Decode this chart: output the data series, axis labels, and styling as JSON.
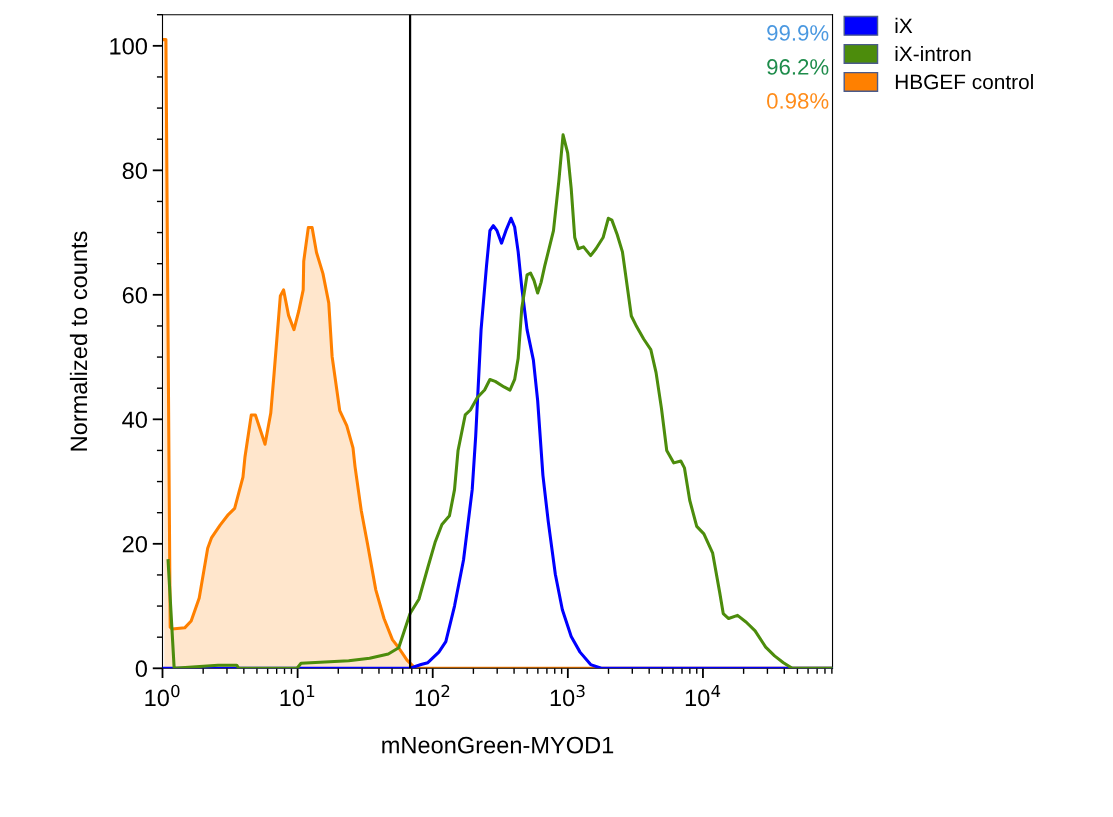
{
  "chart_data": {
    "type": "line",
    "xlabel": "mNeonGreen-MYOD1",
    "ylabel": "Normalized to counts",
    "log": "x",
    "xlim": [
      1,
      91000
    ],
    "xticks": [
      {
        "value": 1,
        "label": "10$^{0}$"
      },
      {
        "value": 10,
        "label": "10$^{1}$"
      },
      {
        "value": 100,
        "label": "10$^{2}$"
      },
      {
        "value": 1000,
        "label": "10$^{3}$"
      },
      {
        "value": 10000,
        "label": "10$^{4}$"
      }
    ],
    "ylim": [
      0,
      105
    ],
    "yticks": [
      0,
      20,
      40,
      60,
      80,
      100
    ],
    "grid": false,
    "legend": "top right",
    "marker": "none",
    "line_style": "solid",
    "ref_lines": [
      {
        "axis": "x",
        "value": 68,
        "color": "#000000",
        "line_style": "solid"
      }
    ],
    "annotations": [
      "99.9%",
      "96.2%",
      "0.98%"
    ],
    "series": [
      {
        "name": "iX",
        "color": "#0000ff",
        "x": [
          1,
          68,
          82,
          92,
          111,
          125,
          145,
          169,
          196,
          208,
          228,
          250,
          265,
          281,
          299,
          323,
          348,
          380,
          404,
          429,
          456,
          499,
          556,
          598,
          654,
          716,
          808,
          911,
          1059,
          1231,
          1475,
          1768,
          3642,
          91000
        ],
        "values": [
          0,
          0,
          0.6,
          0.9,
          2.6,
          4.3,
          10.0,
          17.4,
          28.7,
          37.3,
          54.4,
          64.6,
          70.3,
          71.1,
          70.3,
          68.3,
          70.3,
          72.3,
          70.9,
          66.9,
          61.2,
          54.4,
          49.5,
          43.0,
          31.0,
          23.6,
          15.1,
          9.4,
          5.1,
          2.6,
          0.6,
          0,
          0,
          0
        ]
      },
      {
        "name": "iX-intron",
        "color": "#4c8c0c",
        "x": [
          1.1,
          1.22,
          2.58,
          3.54,
          3.67,
          9.9,
          10.6,
          23.9,
          34.1,
          46.9,
          56,
          68,
          79,
          92,
          104,
          117,
          133,
          145,
          154,
          174,
          190,
          214,
          242,
          265,
          290,
          337,
          373,
          404,
          429,
          456,
          499,
          530,
          562,
          598,
          634,
          674,
          716,
          783,
          858,
          922,
          997,
          1059,
          1125,
          1195,
          1307,
          1475,
          1615,
          1824,
          1995,
          2118,
          2318,
          2536,
          2951,
          3229,
          3642,
          4113,
          4498,
          4928,
          5395,
          6085,
          6860,
          7293,
          7982,
          8995,
          10160,
          11800,
          13300,
          14130,
          15490,
          18030,
          20940,
          24330,
          29130,
          33890,
          39410,
          45800,
          91000
        ],
        "values": [
          17.3,
          0,
          0.5,
          0.5,
          0,
          0,
          0.8,
          1.2,
          1.6,
          2.3,
          3.3,
          8.8,
          11.1,
          16.2,
          20.2,
          23.1,
          24.5,
          28.7,
          35.0,
          40.7,
          41.5,
          43.5,
          44.7,
          46.4,
          46.1,
          45.2,
          44.7,
          46.4,
          49.8,
          57.8,
          63.2,
          63.5,
          62.3,
          60.3,
          62.0,
          64.6,
          66.9,
          70.3,
          78.3,
          85.7,
          82.8,
          77.1,
          69.2,
          67.4,
          67.7,
          66.3,
          67.4,
          69.2,
          72.3,
          72.0,
          69.7,
          66.9,
          56.6,
          54.9,
          52.9,
          51.2,
          47.5,
          41.8,
          35.0,
          33.0,
          33.3,
          32.2,
          27.0,
          22.8,
          21.6,
          18.5,
          12.2,
          8.8,
          8.0,
          8.5,
          7.4,
          6.0,
          3.4,
          2.0,
          0.9,
          0,
          0
        ]
      },
      {
        "name": "HBGEF control",
        "color": "#ff8000",
        "type": "area",
        "x": [
          1.03,
          1.06,
          1.14,
          1.18,
          1.46,
          1.63,
          1.87,
          2.16,
          2.31,
          2.67,
          3.07,
          3.42,
          3.94,
          4.08,
          4.54,
          4.87,
          5.74,
          6.33,
          6.7,
          7.45,
          7.87,
          8.57,
          9.4,
          10.2,
          11.0,
          11.1,
          12.0,
          12.8,
          13.8,
          15.4,
          17.0,
          18.0,
          20.5,
          23.1,
          25.7,
          26.6,
          29.6,
          32.9,
          37.9,
          43.6,
          50.3,
          56.0,
          64.5,
          74.3,
          91000
        ],
        "values": [
          101,
          101,
          6.6,
          6.3,
          6.5,
          7.6,
          11.3,
          19.3,
          21.0,
          23.0,
          24.7,
          25.7,
          30.7,
          34.0,
          40.7,
          40.7,
          36.0,
          41.0,
          47.4,
          59.8,
          60.8,
          56.7,
          54.4,
          57.4,
          60.8,
          65.4,
          70.8,
          70.8,
          66.8,
          63.4,
          58.7,
          50.1,
          41.4,
          39.0,
          35.4,
          32.4,
          25.3,
          20.0,
          12.6,
          8.0,
          4.6,
          3.3,
          1.3,
          0,
          0
        ]
      }
    ]
  }
}
